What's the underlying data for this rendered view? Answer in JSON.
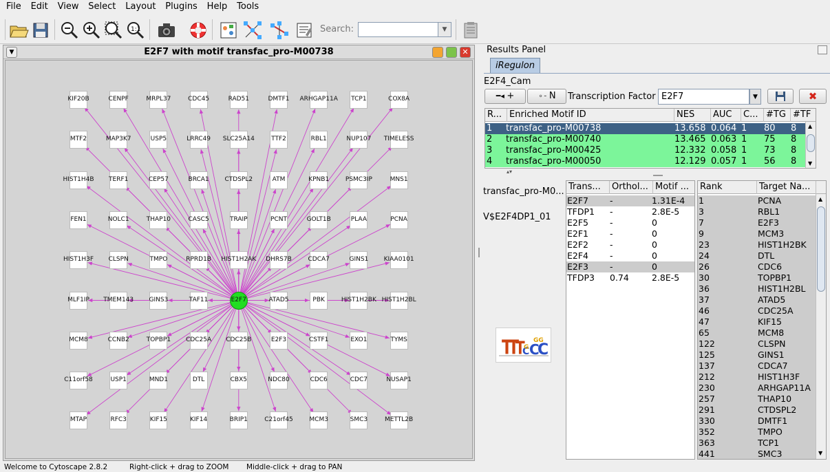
{
  "menu": [
    "File",
    "Edit",
    "View",
    "Select",
    "Layout",
    "Plugins",
    "Help",
    "Tools"
  ],
  "toolbar": {
    "search_label": "Search:",
    "search_value": "",
    "icons": [
      "open-folder-icon",
      "save-disk-icon",
      "zoom-out-icon",
      "zoom-in-icon",
      "zoom-fit-icon",
      "zoom-selected-icon",
      "camera-icon",
      "lifebuoy-icon",
      "vizmapper-icon",
      "network-layout-icon",
      "network-overlay-icon",
      "report-icon",
      "clipboard-icon"
    ]
  },
  "network": {
    "title": "E2F7 with motif transfac_pro-M00738",
    "hub": "E2F7",
    "nodes": [
      [
        "KIF20B",
        "CENPF",
        "MRPL37",
        "CDC45",
        "RAD51",
        "DMTF1",
        "ARHGAP11A",
        "TCP1",
        "COX8A"
      ],
      [
        "MTF2",
        "MAP3K7",
        "USP5",
        "LRRC49",
        "SLC25A14",
        "TTF2",
        "RBL1",
        "NUP107",
        "TIMELESS"
      ],
      [
        "HIST1H4B",
        "TERF1",
        "CEP57",
        "BRCA1",
        "CTDSPL2",
        "ATM",
        "KPNB1",
        "PSMC3IP",
        "MNS1"
      ],
      [
        "FEN1",
        "NOLC1",
        "THAP10",
        "CASC5",
        "TRAIP",
        "PCNT",
        "GOLT1B",
        "PLAA",
        "PCNA"
      ],
      [
        "HIST1H3F",
        "CLSPN",
        "TMPO",
        "RPRD1B",
        "HIST1H2AK",
        "DHRS7B",
        "CDCA7",
        "GINS1",
        "KIAA0101"
      ],
      [
        "MLF1IP",
        "TMEM143",
        "GINS3",
        "TAF11",
        "E2F7",
        "ATAD5",
        "PBK",
        "HIST1H2BK",
        "HIST1H2BL"
      ],
      [
        "MCM8",
        "CCNB2",
        "TOPBP1",
        "CDC25A",
        "CDC25B",
        "E2F3",
        "CSTF1",
        "EXO1",
        "TYMS"
      ],
      [
        "C11orf58",
        "USP1",
        "MND1",
        "DTL",
        "CBX5",
        "NDC80",
        "CDC6",
        "CDC7",
        "NUSAP1"
      ],
      [
        "MTAP",
        "RFC3",
        "KIF15",
        "KIF14",
        "BRIP1",
        "C21orf45",
        "MCM3",
        "SMC3",
        "METTL2B"
      ]
    ]
  },
  "results": {
    "panel_title": "Results Panel",
    "tab": "iRegulon",
    "dataset": "E2F4_Cam",
    "btn_add": "+",
    "btn_n": "N",
    "tf_label": "Transcription Factor",
    "tf_value": "E2F7",
    "motif_table": {
      "headers": [
        "R...",
        "Enriched Motif ID",
        "NES",
        "AUC",
        "C...",
        "#TG",
        "#TF"
      ],
      "rows": [
        [
          "1",
          "transfac_pro-M00738",
          "13.658",
          "0.064",
          "1",
          "80",
          "8"
        ],
        [
          "2",
          "transfac_pro-M00740",
          "13.465",
          "0.063",
          "1",
          "75",
          "8"
        ],
        [
          "3",
          "transfac_pro-M00425",
          "12.332",
          "0.058",
          "1",
          "73",
          "8"
        ],
        [
          "4",
          "transfac_pro-M00050",
          "12.129",
          "0.057",
          "1",
          "56",
          "8"
        ]
      ]
    },
    "selected_motif": "transfac_pro-M0...",
    "motif_alias": "V$E2F4DP1_01",
    "tf_table": {
      "headers": [
        "Trans...",
        "Orthol...",
        "Motif ..."
      ],
      "rows": [
        [
          "E2F7",
          "-",
          "1.31E-4"
        ],
        [
          "TFDP1",
          "-",
          "2.8E-5"
        ],
        [
          "E2F5",
          "-",
          "0"
        ],
        [
          "E2F1",
          "-",
          "0"
        ],
        [
          "E2F2",
          "-",
          "0"
        ],
        [
          "E2F4",
          "-",
          "0"
        ],
        [
          "E2F3",
          "-",
          "0"
        ],
        [
          "TFDP3",
          "0.74",
          "2.8E-5"
        ]
      ]
    },
    "target_table": {
      "headers": [
        "Rank",
        "Target Na..."
      ],
      "rows": [
        [
          "1",
          "PCNA"
        ],
        [
          "3",
          "RBL1"
        ],
        [
          "7",
          "E2F3"
        ],
        [
          "9",
          "MCM3"
        ],
        [
          "23",
          "HIST1H2BK"
        ],
        [
          "24",
          "DTL"
        ],
        [
          "26",
          "CDC6"
        ],
        [
          "30",
          "TOPBP1"
        ],
        [
          "36",
          "HIST1H2BL"
        ],
        [
          "37",
          "ATAD5"
        ],
        [
          "46",
          "CDC25A"
        ],
        [
          "47",
          "KIF15"
        ],
        [
          "65",
          "MCM8"
        ],
        [
          "122",
          "CLSPN"
        ],
        [
          "125",
          "GINS1"
        ],
        [
          "137",
          "CDCA7"
        ],
        [
          "212",
          "HIST1H3F"
        ],
        [
          "230",
          "ARHGAP11A"
        ],
        [
          "257",
          "THAP10"
        ],
        [
          "291",
          "CTDSPL2"
        ],
        [
          "330",
          "DMTF1"
        ],
        [
          "352",
          "TMPO"
        ],
        [
          "363",
          "TCP1"
        ],
        [
          "441",
          "SMC3"
        ]
      ]
    }
  },
  "status": {
    "welcome": "Welcome to Cytoscape 2.8.2",
    "zoom_hint": "Right-click + drag to ZOOM",
    "pan_hint": "Middle-click + drag to PAN"
  },
  "colors": {
    "selected_row": "#3d6185",
    "green_row": "#7cf59a",
    "edge": "#cc44cc",
    "hub": "#22dd22"
  }
}
